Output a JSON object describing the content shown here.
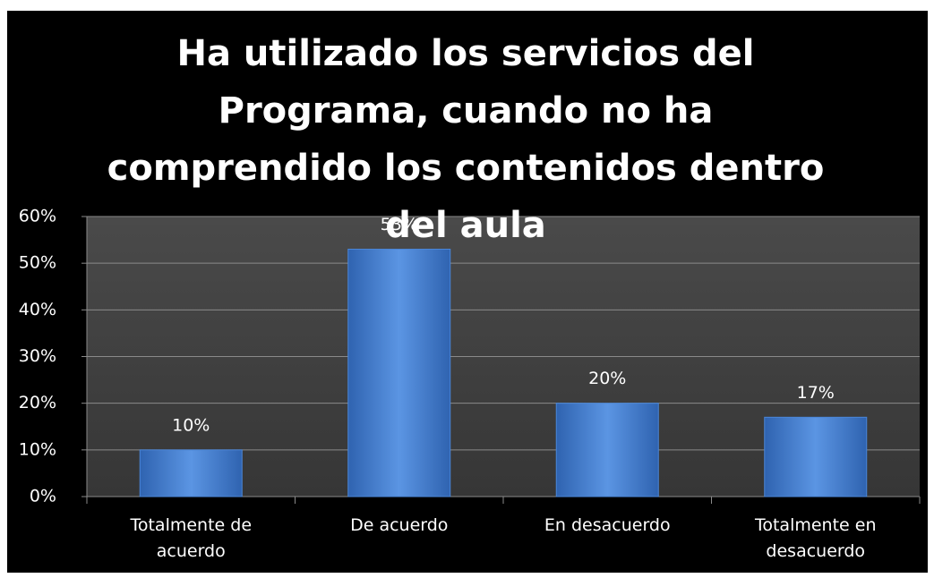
{
  "chart_data": {
    "type": "bar",
    "title": "Ha utilizado los servicios del Programa, cuando no ha comprendido los contenidos dentro del aula",
    "categories": [
      "Totalmente de acuerdo",
      "De acuerdo",
      "En desacuerdo",
      "Totalmente en desacuerdo"
    ],
    "values": [
      10,
      53,
      20,
      17
    ],
    "value_labels": [
      "10%",
      "53%",
      "20%",
      "17%"
    ],
    "color": "#4a86d8",
    "ylim": [
      0,
      60
    ],
    "yticks": [
      {
        "value": 0,
        "label": "0%"
      },
      {
        "value": 10,
        "label": "10%"
      },
      {
        "value": 20,
        "label": "20%"
      },
      {
        "value": 30,
        "label": "30%"
      },
      {
        "value": 40,
        "label": "40%"
      },
      {
        "value": 50,
        "label": "50%"
      },
      {
        "value": 60,
        "label": "60%"
      }
    ],
    "grid": true
  }
}
